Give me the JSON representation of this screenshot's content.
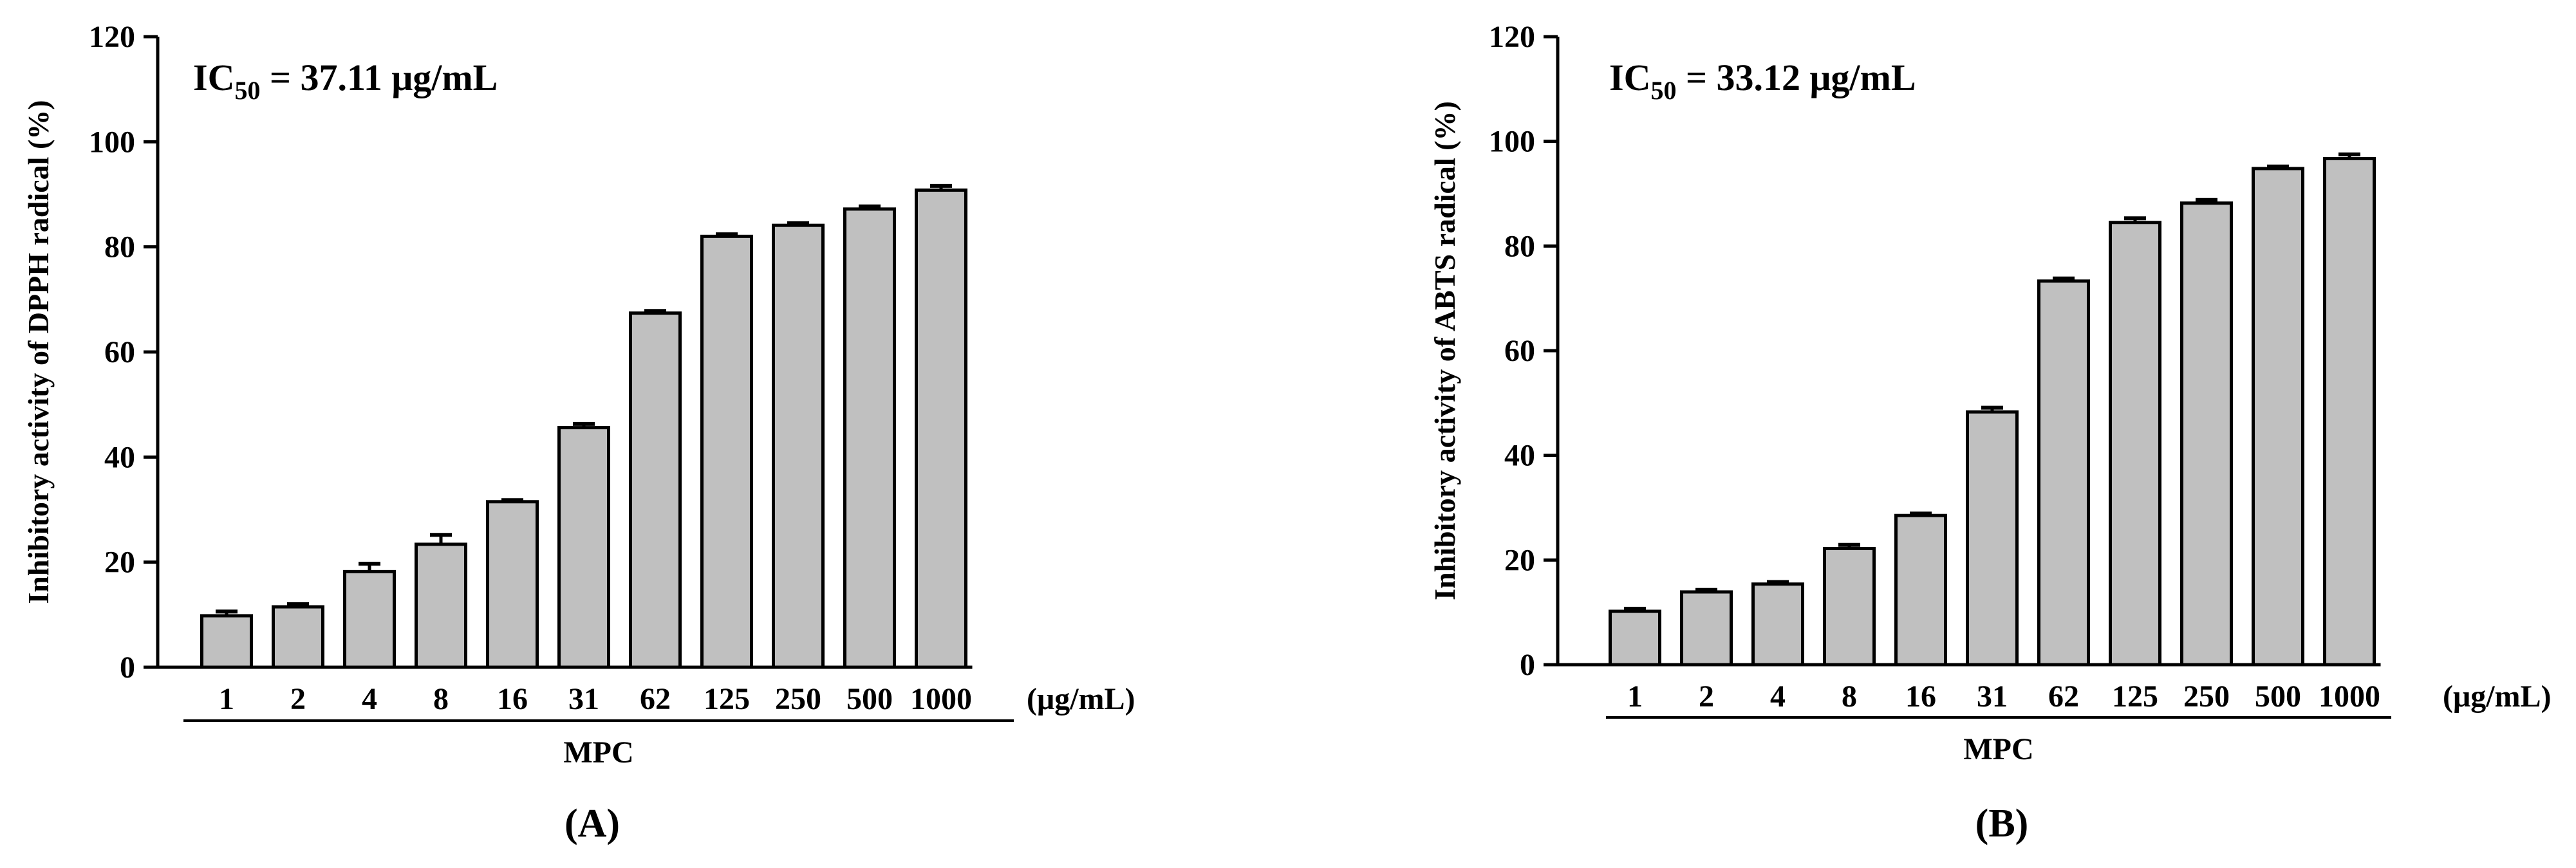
{
  "chart_data": [
    {
      "type": "bar",
      "panel_label": "(A)",
      "panel_letter": "A",
      "ic50": {
        "prefix": "IC",
        "subscript": "50",
        "value_text": " = 37.11 μg/mL"
      },
      "ylabel": "Inhibitory activity of DPPH radical (%)",
      "xlabel": "MPC",
      "x_unit": "(μg/mL)",
      "ylim": [
        0,
        120
      ],
      "yticks": [
        0,
        20,
        40,
        60,
        80,
        100,
        120
      ],
      "categories": [
        "1",
        "2",
        "4",
        "8",
        "16",
        "31",
        "62",
        "125",
        "250",
        "500",
        "1000"
      ],
      "values": [
        9.8,
        11.5,
        18.2,
        23.4,
        31.5,
        45.6,
        67.4,
        82.0,
        84.1,
        87.2,
        90.8
      ],
      "errors": [
        0.8,
        0.5,
        1.5,
        1.8,
        0.3,
        0.7,
        0.4,
        0.4,
        0.4,
        0.5,
        0.8
      ],
      "grid": false
    },
    {
      "type": "bar",
      "panel_label": "(B)",
      "panel_letter": "B",
      "ic50": {
        "prefix": "IC",
        "subscript": "50",
        "value_text": " = 33.12 μg/mL"
      },
      "ylabel": "Inhibitory activity of ABTS radical (%)",
      "xlabel": "MPC",
      "x_unit": "(μg/mL)",
      "ylim": [
        0,
        120
      ],
      "yticks": [
        0,
        20,
        40,
        60,
        80,
        100,
        120
      ],
      "categories": [
        "1",
        "2",
        "4",
        "8",
        "16",
        "31",
        "62",
        "125",
        "250",
        "500",
        "1000"
      ],
      "values": [
        10.2,
        13.9,
        15.4,
        22.2,
        28.5,
        48.3,
        73.3,
        84.5,
        88.2,
        94.8,
        96.7
      ],
      "errors": [
        0.5,
        0.4,
        0.4,
        0.7,
        0.4,
        0.8,
        0.5,
        0.8,
        0.6,
        0.4,
        0.8
      ],
      "grid": false
    }
  ],
  "colors": {
    "bar_fill": "#c0c0c0",
    "bar_stroke": "#000000",
    "axis": "#000000"
  }
}
